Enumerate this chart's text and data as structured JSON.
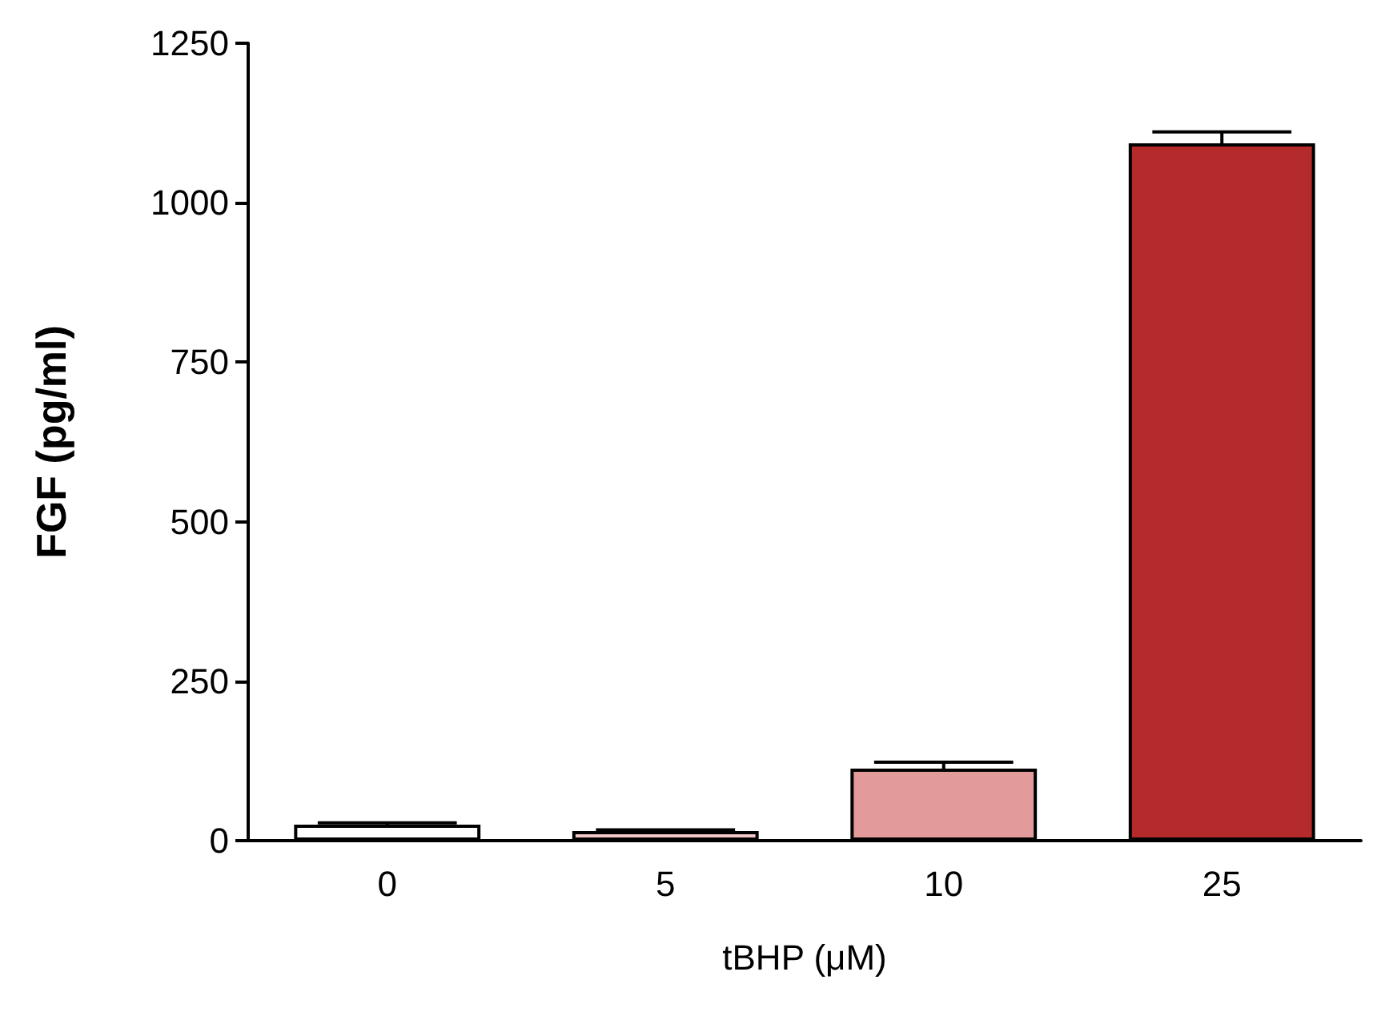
{
  "chart_data": {
    "type": "bar",
    "xlabel": "tBHP (μM)",
    "ylabel": "FGF (pg/ml)",
    "categories": [
      "0",
      "5",
      "10",
      "25"
    ],
    "values": [
      25,
      15,
      113,
      1093
    ],
    "errors": [
      3,
      2,
      10,
      18
    ],
    "colors": [
      "#ffffff",
      "#f2c8c8",
      "#e39a9a",
      "#b52a2a"
    ],
    "ylim": [
      0,
      1250
    ],
    "yticks": [
      0,
      250,
      500,
      750,
      1000,
      1250
    ],
    "grid": false
  }
}
